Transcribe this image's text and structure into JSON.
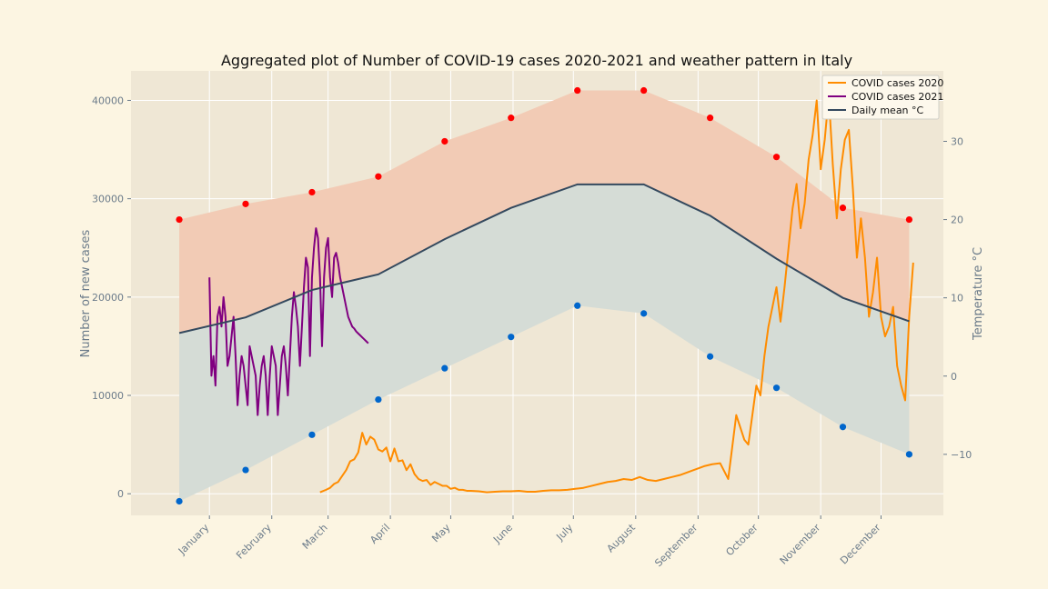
{
  "chart_data": {
    "type": "line",
    "title": "Aggregated plot of Number of COVID-19 cases 2020-2021 and weather pattern in Italy",
    "ylabel": "Number of new cases",
    "y2label": "Temperature °C",
    "grid": true,
    "legend_position": "top-right",
    "months": [
      "January",
      "February",
      "March",
      "April",
      "May",
      "June",
      "July",
      "August",
      "September",
      "October",
      "November",
      "December"
    ],
    "ylim": [
      -2200,
      43000
    ],
    "yticks": [
      0,
      10000,
      20000,
      30000,
      40000
    ],
    "y2lim": [
      -17.8,
      39.0
    ],
    "y2ticks": [
      -10,
      0,
      10,
      20,
      30
    ],
    "xlim": [
      -39,
      365
    ],
    "colors": {
      "cases_2020": "#ff8c00",
      "cases_2021": "#800080",
      "daily_mean": "#34495e",
      "max_band": "#f2cbb5",
      "min_band": "#d5dcd6",
      "max_points": "#ff0000",
      "min_points": "#0066cc",
      "plot_bg": "#efe7d5",
      "grid": "#ffffff"
    },
    "legend": [
      {
        "label": "COVID cases 2020",
        "color": "#ff8c00"
      },
      {
        "label": "COVID cases 2021",
        "color": "#800080"
      },
      {
        "label": "Daily mean °C",
        "color": "#34495e"
      }
    ],
    "temperature_days": [
      -15,
      18,
      51,
      84,
      117,
      150,
      183,
      216,
      249,
      282,
      315,
      348
    ],
    "temp_max": [
      20,
      22,
      23.5,
      25.5,
      30,
      33,
      36.5,
      36.5,
      33,
      28,
      21.5,
      20
    ],
    "temp_mean": [
      5.5,
      7.5,
      11,
      13,
      17.5,
      21.5,
      24.5,
      24.5,
      20.5,
      15,
      10,
      7
    ],
    "temp_min": [
      -16,
      -12,
      -7.5,
      -3,
      1,
      5,
      9,
      8,
      2.5,
      -1.5,
      -6.5,
      -10
    ],
    "series": [
      {
        "name": "COVID cases 2020",
        "x": [
          55,
          58,
          60,
          62,
          64,
          66,
          68,
          70,
          72,
          74,
          76,
          78,
          80,
          82,
          84,
          86,
          88,
          90,
          92,
          94,
          96,
          98,
          100,
          102,
          104,
          106,
          108,
          110,
          112,
          114,
          116,
          118,
          120,
          122,
          124,
          126,
          128,
          130,
          134,
          138,
          142,
          146,
          150,
          154,
          158,
          162,
          166,
          170,
          174,
          178,
          182,
          186,
          190,
          194,
          198,
          202,
          206,
          210,
          214,
          218,
          222,
          226,
          230,
          234,
          238,
          242,
          246,
          250,
          254,
          258,
          262,
          266,
          268,
          270,
          272,
          274,
          276,
          278,
          280,
          282,
          284,
          286,
          288,
          290,
          292,
          294,
          296,
          298,
          300,
          302,
          304,
          306,
          308,
          310,
          312,
          314,
          316,
          318,
          320,
          322,
          324,
          326,
          328,
          330,
          332,
          334,
          336,
          338,
          340,
          342,
          344,
          346,
          348,
          350
        ],
        "y": [
          150,
          400,
          600,
          1000,
          1200,
          1800,
          2400,
          3300,
          3500,
          4200,
          6200,
          5000,
          5800,
          5500,
          4500,
          4300,
          4700,
          3300,
          4600,
          3300,
          3400,
          2400,
          3000,
          2000,
          1500,
          1300,
          1400,
          900,
          1200,
          1000,
          800,
          800,
          500,
          600,
          400,
          400,
          300,
          300,
          250,
          150,
          200,
          250,
          250,
          300,
          200,
          200,
          300,
          350,
          350,
          400,
          500,
          600,
          800,
          1000,
          1200,
          1300,
          1500,
          1400,
          1700,
          1400,
          1300,
          1500,
          1700,
          1900,
          2200,
          2500,
          2800,
          3000,
          3100,
          1500,
          8000,
          5500,
          5000,
          8000,
          11000,
          10000,
          14000,
          17000,
          19000,
          21000,
          17500,
          21000,
          25000,
          29000,
          31500,
          27000,
          29500,
          34000,
          36500,
          40000,
          33000,
          36000,
          40500,
          33500,
          28000,
          33000,
          36000,
          37000,
          31000,
          24000,
          28000,
          24000,
          18000,
          20500,
          24000,
          18000,
          16000,
          17000,
          19000,
          13000,
          11000,
          9500,
          18000,
          23500
        ]
      },
      {
        "name": "COVID cases 2021",
        "x": [
          0,
          1,
          2,
          3,
          4,
          5,
          6,
          7,
          8,
          9,
          10,
          11,
          12,
          13,
          14,
          15,
          16,
          17,
          18,
          19,
          20,
          21,
          22,
          23,
          24,
          25,
          26,
          27,
          28,
          29,
          30,
          31,
          32,
          33,
          34,
          35,
          36,
          37,
          38,
          39,
          40,
          41,
          42,
          43,
          44,
          45,
          46,
          47,
          48,
          49,
          50,
          51,
          52,
          53,
          54,
          55,
          56,
          57,
          58,
          59,
          60,
          61,
          62,
          63,
          64,
          65,
          66,
          67,
          68,
          69,
          70,
          71,
          72,
          73,
          74,
          75,
          76,
          77,
          78,
          79
        ],
        "y": [
          22000,
          12000,
          14000,
          11000,
          18000,
          19000,
          17000,
          20000,
          18000,
          13000,
          14000,
          16000,
          18000,
          14000,
          9000,
          12000,
          14000,
          13000,
          11000,
          9000,
          15000,
          14000,
          13000,
          12000,
          8000,
          11000,
          13000,
          14000,
          12000,
          8000,
          12000,
          15000,
          14000,
          13000,
          8000,
          11000,
          14000,
          15000,
          13000,
          10000,
          14000,
          18000,
          20500,
          19000,
          17000,
          13000,
          17000,
          21000,
          24000,
          23000,
          14000,
          22000,
          25000,
          27000,
          26000,
          22000,
          15000,
          22000,
          25000,
          26000,
          22000,
          20000,
          24000,
          24500,
          23500,
          22000,
          21000,
          20000,
          19000,
          18000,
          17500,
          17000,
          16800,
          16500,
          16300,
          16100,
          15900,
          15700,
          15500,
          15300
        ]
      }
    ]
  }
}
